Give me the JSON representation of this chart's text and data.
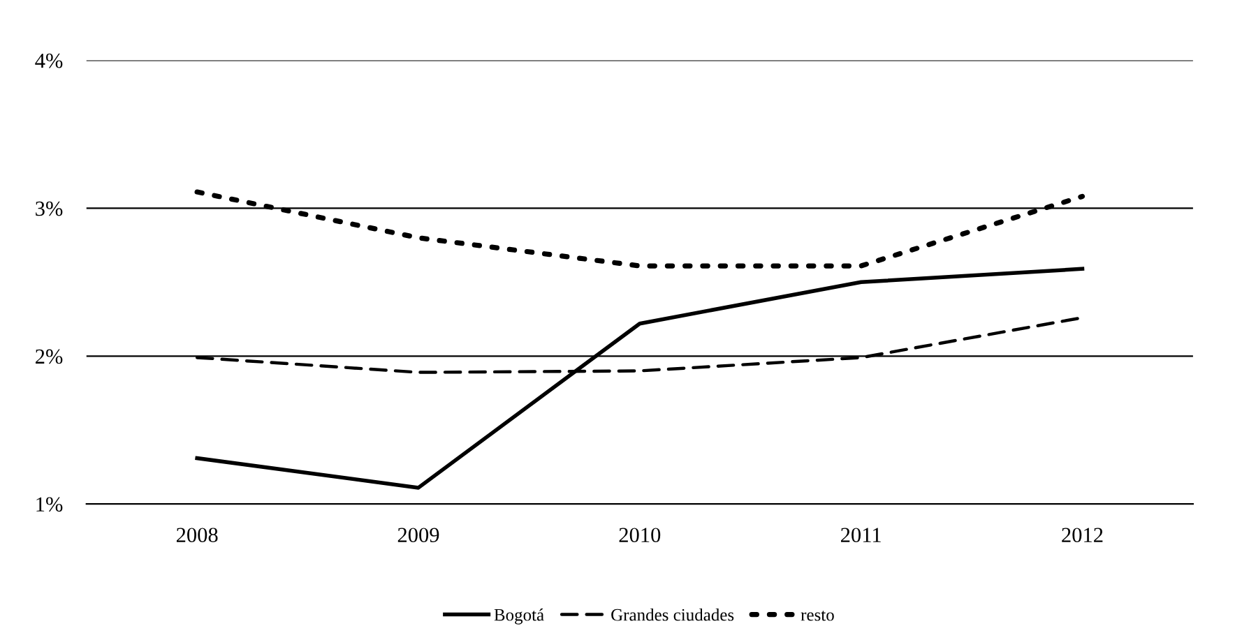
{
  "chart_data": {
    "type": "line",
    "categories": [
      "2008",
      "2009",
      "2010",
      "2011",
      "2012"
    ],
    "series": [
      {
        "name": "Bogotá",
        "color": "#000000",
        "line_style": "solid",
        "values": [
          1.31,
          1.11,
          2.22,
          2.5,
          2.59
        ]
      },
      {
        "name": "Grandes ciudades",
        "color": "#000000",
        "line_style": "dashed",
        "values": [
          1.99,
          1.89,
          1.9,
          1.99,
          2.26
        ]
      },
      {
        "name": "resto",
        "color": "#000000",
        "line_style": "dotted",
        "values": [
          3.11,
          2.8,
          2.61,
          2.61,
          3.08
        ]
      }
    ],
    "ylim": [
      1,
      4
    ],
    "yticks": [
      {
        "value": 1,
        "label": "1%"
      },
      {
        "value": 2,
        "label": "2%"
      },
      {
        "value": 3,
        "label": "3%"
      },
      {
        "value": 4,
        "label": "4%"
      }
    ],
    "grid": "y",
    "legend": "bottom",
    "marker": "none"
  }
}
